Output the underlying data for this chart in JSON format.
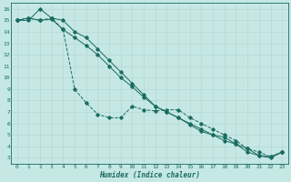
{
  "xlabel": "Humidex (Indice chaleur)",
  "bg_color": "#c5e8e5",
  "grid_color_major": "#b8d8d5",
  "grid_color_minor": "#cde8e5",
  "line_color": "#1a6b60",
  "xlim": [
    -0.5,
    23.5
  ],
  "ylim": [
    2.5,
    16.5
  ],
  "xticks": [
    0,
    1,
    2,
    3,
    4,
    5,
    6,
    7,
    8,
    9,
    10,
    11,
    12,
    13,
    14,
    15,
    16,
    17,
    18,
    19,
    20,
    21,
    22,
    23
  ],
  "yticks": [
    3,
    4,
    5,
    6,
    7,
    8,
    9,
    10,
    11,
    12,
    13,
    14,
    15,
    16
  ],
  "series1_x": [
    0,
    1,
    2,
    3,
    4,
    5,
    6,
    7,
    8,
    9,
    10,
    11,
    12,
    13,
    14,
    15,
    16,
    17,
    18,
    19,
    20,
    21,
    22,
    23
  ],
  "series1_y": [
    15,
    15,
    16,
    15.2,
    15,
    14,
    13.5,
    12.5,
    11.5,
    10.5,
    9.5,
    8.5,
    7.5,
    7.0,
    6.5,
    6.0,
    5.5,
    5.0,
    4.5,
    4.2,
    3.8,
    3.2,
    3.1,
    3.5
  ],
  "series2_x": [
    0,
    1,
    2,
    3,
    4,
    5,
    6,
    7,
    8,
    9,
    10,
    11,
    12,
    13,
    14,
    15,
    16,
    17,
    18,
    19,
    20,
    21,
    22,
    23
  ],
  "series2_y": [
    15,
    15.2,
    15,
    15.1,
    14.2,
    13.5,
    12.8,
    12.0,
    11.0,
    10.0,
    9.2,
    8.3,
    7.5,
    7.0,
    6.5,
    5.9,
    5.3,
    5.0,
    4.8,
    4.2,
    3.5,
    3.2,
    3.0,
    3.5
  ],
  "series3_x": [
    0,
    1,
    2,
    3,
    4,
    5,
    6,
    7,
    8,
    9,
    10,
    11,
    12,
    13,
    14,
    15,
    16,
    17,
    18,
    19,
    20,
    21,
    22,
    23
  ],
  "series3_y": [
    15,
    15.2,
    15,
    15.2,
    14.2,
    9.0,
    7.8,
    6.8,
    6.5,
    6.5,
    7.5,
    7.2,
    7.1,
    7.2,
    7.2,
    6.5,
    6.0,
    5.5,
    5.0,
    4.5,
    3.8,
    3.5,
    3.1,
    3.5
  ]
}
